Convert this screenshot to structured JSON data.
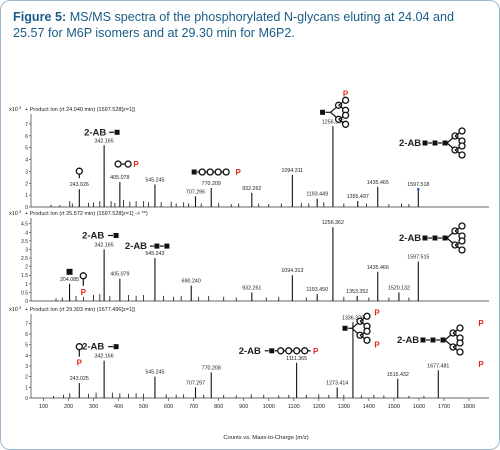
{
  "figure": {
    "lead": "Figure 5:",
    "text": "MS/MS spectra of the phosphorylated N-glycans eluting at 24.04 and 25.57 for M6P isomers and at 29.30 min for M6P2."
  },
  "colors": {
    "caption": "#1a5d86",
    "phosphate": "#e3241b",
    "peaks": "#111111",
    "highlight_peak": "#2f5fb3",
    "frame": "#9fb8cf"
  },
  "icons": [
    "glycan-square-icon",
    "glycan-circle-icon",
    "phosphate-label-icon"
  ],
  "chart_data": [
    {
      "type": "bar",
      "scale_label": "x10",
      "scale_exp": "3",
      "header": "+ Product Ion (rt 24.040 min) (1597.528[z=1])",
      "ylim": [
        0,
        7.5
      ],
      "yticks": [
        "0",
        "1",
        "2",
        "3",
        "4",
        "5",
        "6",
        "7"
      ],
      "peaks": [
        {
          "x": 243.026,
          "y": 1.5,
          "label": "243.026"
        },
        {
          "x": 342.165,
          "y": 5.2,
          "label": "342.165"
        },
        {
          "x": 405.078,
          "y": 2.1,
          "label": "405.078"
        },
        {
          "x": 545.245,
          "y": 1.9,
          "label": "545.245"
        },
        {
          "x": 707.296,
          "y": 0.9,
          "label": "707.296"
        },
        {
          "x": 770.209,
          "y": 1.6,
          "label": "770.209"
        },
        {
          "x": 932.262,
          "y": 1.2,
          "label": "932.262"
        },
        {
          "x": 1094.311,
          "y": 2.7,
          "label": "1094.311"
        },
        {
          "x": 1193.449,
          "y": 0.7,
          "label": "1193.449"
        },
        {
          "x": 1256.365,
          "y": 6.8,
          "label": "1256.365"
        },
        {
          "x": 1355.497,
          "y": 0.5,
          "label": "1355.497"
        },
        {
          "x": 1435.465,
          "y": 1.7,
          "label": "1435.465"
        },
        {
          "x": 1597.518,
          "y": 1.5,
          "label": "1597.518",
          "highlight": true
        }
      ],
      "minor_peaks": [
        [
          130,
          0.2
        ],
        [
          165,
          0.15
        ],
        [
          205,
          0.5
        ],
        [
          215,
          0.3
        ],
        [
          280,
          0.35
        ],
        [
          300,
          0.4
        ],
        [
          325,
          0.5
        ],
        [
          370,
          0.5
        ],
        [
          385,
          0.35
        ],
        [
          420,
          0.6
        ],
        [
          445,
          0.45
        ],
        [
          470,
          0.5
        ],
        [
          500,
          0.5
        ],
        [
          520,
          0.4
        ],
        [
          570,
          0.4
        ],
        [
          610,
          0.45
        ],
        [
          630,
          0.3
        ],
        [
          660,
          0.4
        ],
        [
          680,
          0.3
        ],
        [
          730,
          0.3
        ],
        [
          800,
          0.35
        ],
        [
          850,
          0.25
        ],
        [
          880,
          0.3
        ],
        [
          960,
          0.3
        ],
        [
          1000,
          0.25
        ],
        [
          1050,
          0.3
        ],
        [
          1130,
          0.35
        ],
        [
          1160,
          0.3
        ],
        [
          1220,
          0.4
        ],
        [
          1300,
          0.3
        ],
        [
          1390,
          0.3
        ],
        [
          1480,
          0.25
        ],
        [
          1530,
          0.3
        ],
        [
          1560,
          0.25
        ]
      ],
      "annotations": {
        "ab_342": "2-AB",
        "p_405": "P",
        "p_770": "P",
        "p_1256": "P",
        "ab_1597": "2-AB"
      }
    },
    {
      "type": "bar",
      "scale_label": "x10",
      "scale_exp": "3",
      "header": "+ Product Ion (rt 25.572 min) (1597.528[z=1] -> **)",
      "ylim": [
        0,
        4.6
      ],
      "yticks": [
        "0",
        "0.5",
        "1",
        "1.5",
        "2",
        "2.5",
        "3",
        "3.5",
        "4",
        "4.5"
      ],
      "peaks": [
        {
          "x": 204.085,
          "y": 1.0,
          "label": "204.085"
        },
        {
          "x": 342.165,
          "y": 3.0,
          "label": "342.165"
        },
        {
          "x": 405.079,
          "y": 1.3,
          "label": "405.079"
        },
        {
          "x": 545.243,
          "y": 2.5,
          "label": "545.243"
        },
        {
          "x": 690.24,
          "y": 0.9,
          "label": "690.240"
        },
        {
          "x": 932.261,
          "y": 0.5,
          "label": "932.261"
        },
        {
          "x": 1094.313,
          "y": 1.5,
          "label": "1094.313"
        },
        {
          "x": 1193.45,
          "y": 0.4,
          "label": "1193.450"
        },
        {
          "x": 1256.362,
          "y": 4.3,
          "label": "1256.362"
        },
        {
          "x": 1353.352,
          "y": 0.3,
          "label": "1353.352"
        },
        {
          "x": 1435.466,
          "y": 1.7,
          "label": "1435.466"
        },
        {
          "x": 1520.132,
          "y": 0.5,
          "label": "1520.132"
        },
        {
          "x": 1597.515,
          "y": 2.3,
          "label": "1597.515"
        }
      ],
      "minor_peaks": [
        [
          150,
          0.15
        ],
        [
          175,
          0.2
        ],
        [
          230,
          0.3
        ],
        [
          260,
          0.25
        ],
        [
          300,
          0.35
        ],
        [
          325,
          0.4
        ],
        [
          365,
          0.3
        ],
        [
          440,
          0.35
        ],
        [
          470,
          0.3
        ],
        [
          500,
          0.35
        ],
        [
          580,
          0.3
        ],
        [
          620,
          0.25
        ],
        [
          650,
          0.3
        ],
        [
          720,
          0.25
        ],
        [
          760,
          0.3
        ],
        [
          820,
          0.25
        ],
        [
          870,
          0.2
        ],
        [
          990,
          0.2
        ],
        [
          1040,
          0.25
        ],
        [
          1150,
          0.2
        ],
        [
          1300,
          0.25
        ],
        [
          1400,
          0.2
        ],
        [
          1480,
          0.2
        ],
        [
          1560,
          0.2
        ]
      ],
      "annotations": {
        "ab_342": "2-AB",
        "ab_545": "2-AB",
        "p_243": "P",
        "ab_1597": "2-AB"
      }
    },
    {
      "type": "bar",
      "scale_label": "x10",
      "scale_exp": "3",
      "header": "+ Product Ion (rt 29.303 min) (1677.496[z=1])",
      "ylim": [
        0,
        7.5
      ],
      "yticks": [
        "0",
        "1",
        "2",
        "3",
        "4",
        "5",
        "6",
        "7"
      ],
      "peaks": [
        {
          "x": 243.025,
          "y": 1.4,
          "label": "243.025"
        },
        {
          "x": 342.166,
          "y": 3.5,
          "label": "342.166"
        },
        {
          "x": 545.245,
          "y": 2.0,
          "label": "545.245"
        },
        {
          "x": 707.297,
          "y": 1.0,
          "label": "707.297"
        },
        {
          "x": 770.208,
          "y": 2.4,
          "label": "770.208"
        },
        {
          "x": 1111.365,
          "y": 3.3,
          "label": "1111.365"
        },
        {
          "x": 1273.414,
          "y": 1.0,
          "label": "1273.414"
        },
        {
          "x": 1336.328,
          "y": 7.1,
          "label": "1336.328"
        },
        {
          "x": 1515.432,
          "y": 1.8,
          "label": "1515.432"
        },
        {
          "x": 1677.481,
          "y": 2.6,
          "label": "1677.481"
        }
      ],
      "minor_peaks": [
        [
          140,
          0.2
        ],
        [
          180,
          0.3
        ],
        [
          205,
          0.45
        ],
        [
          280,
          0.4
        ],
        [
          310,
          0.5
        ],
        [
          375,
          0.5
        ],
        [
          405,
          0.45
        ],
        [
          440,
          0.4
        ],
        [
          470,
          0.45
        ],
        [
          500,
          0.4
        ],
        [
          590,
          0.35
        ],
        [
          630,
          0.3
        ],
        [
          660,
          0.35
        ],
        [
          740,
          0.3
        ],
        [
          820,
          0.3
        ],
        [
          870,
          0.25
        ],
        [
          930,
          0.35
        ],
        [
          980,
          0.3
        ],
        [
          1040,
          0.25
        ],
        [
          1080,
          0.3
        ],
        [
          1150,
          0.3
        ],
        [
          1200,
          0.35
        ],
        [
          1240,
          0.3
        ],
        [
          1300,
          0.3
        ],
        [
          1370,
          0.25
        ],
        [
          1420,
          0.3
        ],
        [
          1460,
          0.25
        ],
        [
          1560,
          0.2
        ],
        [
          1620,
          0.2
        ]
      ],
      "annotations": {
        "ab_342": "2-AB",
        "p_243": "P",
        "ab_1111": "2-AB",
        "p_1111": "P",
        "ab_1677": "2-AB",
        "p_1677_top": "P",
        "p_1677_bot": "P",
        "p_1336_a": "P",
        "p_1336_b": "P"
      }
    }
  ],
  "x_axis": {
    "ticks": [
      "100",
      "200",
      "300",
      "400",
      "500",
      "600",
      "700",
      "800",
      "900",
      "1000",
      "1100",
      "1200",
      "1300",
      "1400",
      "1500",
      "1600",
      "1700",
      "1800"
    ],
    "xlim": [
      50,
      1880
    ],
    "label": "Counts vs. Mass-to-Charge (m/z)"
  }
}
